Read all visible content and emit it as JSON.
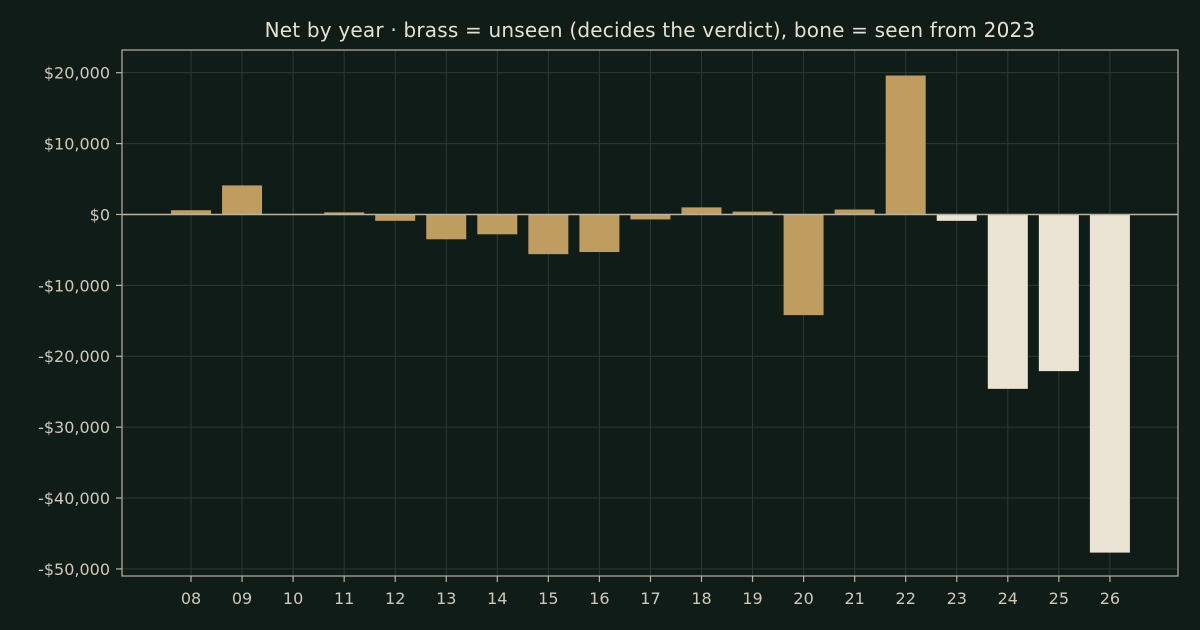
{
  "chart_data": {
    "type": "bar",
    "title": "Net by year  ·  brass = unseen (decides the verdict), bone = seen from 2023",
    "xlabel": "",
    "ylabel": "",
    "categories": [
      "08",
      "09",
      "10",
      "11",
      "12",
      "13",
      "14",
      "15",
      "16",
      "17",
      "18",
      "19",
      "20",
      "21",
      "22",
      "23",
      "24",
      "25",
      "26"
    ],
    "values": [
      600,
      4100,
      0,
      300,
      -900,
      -3500,
      -2800,
      -5600,
      -5300,
      -700,
      1000,
      400,
      -14200,
      700,
      19600,
      -900,
      -24600,
      -22100,
      -47700
    ],
    "groups": [
      "unseen",
      "unseen",
      "unseen",
      "unseen",
      "unseen",
      "unseen",
      "unseen",
      "unseen",
      "unseen",
      "unseen",
      "unseen",
      "unseen",
      "unseen",
      "unseen",
      "unseen",
      "seen",
      "seen",
      "seen",
      "seen"
    ],
    "group_colors": {
      "unseen": "#bf9c60",
      "seen": "#ebe3d3"
    },
    "ylim": [
      -51000,
      23200
    ],
    "yticks": [
      20000,
      10000,
      0,
      -10000,
      -20000,
      -30000,
      -40000,
      -50000
    ],
    "ytick_labels": [
      "$20,000",
      "$10,000",
      "$0",
      "-$10,000",
      "-$20,000",
      "-$30,000",
      "-$40,000",
      "-$50,000"
    ],
    "grid": true,
    "background": "#101c17",
    "grid_color": "#2b3a33",
    "axis_color": "#b9b3a3",
    "text_color": "#cfc9b8"
  }
}
